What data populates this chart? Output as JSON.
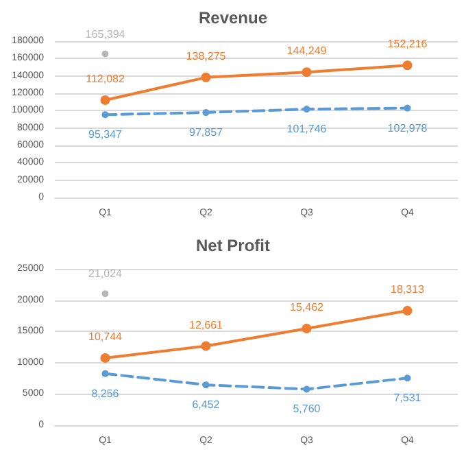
{
  "chart_data": [
    {
      "type": "line",
      "title": "Revenue",
      "categories": [
        "Q1",
        "Q2",
        "Q3",
        "Q4"
      ],
      "ylim": [
        0,
        180000
      ],
      "yticks": [
        0,
        20000,
        40000,
        60000,
        80000,
        100000,
        120000,
        140000,
        160000,
        180000
      ],
      "grid": "y",
      "marker": "circle",
      "series": [
        {
          "type": "scatter",
          "color": "#a5a5a5",
          "values": [
            165394,
            null,
            null,
            null
          ],
          "value_labels": [
            "165,394",
            null,
            null,
            null
          ]
        },
        {
          "color": "#ed7d31",
          "line_style": "solid",
          "values": [
            112082,
            138275,
            144249,
            152216
          ],
          "value_labels": [
            "112,082",
            "138,275",
            "144,249",
            "152,216"
          ]
        },
        {
          "color": "#5b9bd5",
          "line_style": "dashed",
          "values": [
            95347,
            97857,
            101746,
            102978
          ],
          "value_labels": [
            "95,347",
            "97,857",
            "101,746",
            "102,978"
          ]
        }
      ]
    },
    {
      "type": "line",
      "title": "Net Profit",
      "categories": [
        "Q1",
        "Q2",
        "Q3",
        "Q4"
      ],
      "ylim": [
        0,
        25000
      ],
      "yticks": [
        0,
        5000,
        10000,
        15000,
        20000,
        25000
      ],
      "grid": "y",
      "marker": "circle",
      "series": [
        {
          "type": "scatter",
          "color": "#a5a5a5",
          "values": [
            21024,
            null,
            null,
            null
          ],
          "value_labels": [
            "21,024",
            null,
            null,
            null
          ]
        },
        {
          "color": "#ed7d31",
          "line_style": "solid",
          "values": [
            10744,
            12661,
            15462,
            18313
          ],
          "value_labels": [
            "10,744",
            "12,661",
            "15,462",
            "18,313"
          ]
        },
        {
          "color": "#5b9bd5",
          "line_style": "dashed",
          "values": [
            8256,
            6452,
            5760,
            7531
          ],
          "value_labels": [
            "8,256",
            "6,452",
            "5,760",
            "7,531"
          ]
        }
      ]
    }
  ]
}
